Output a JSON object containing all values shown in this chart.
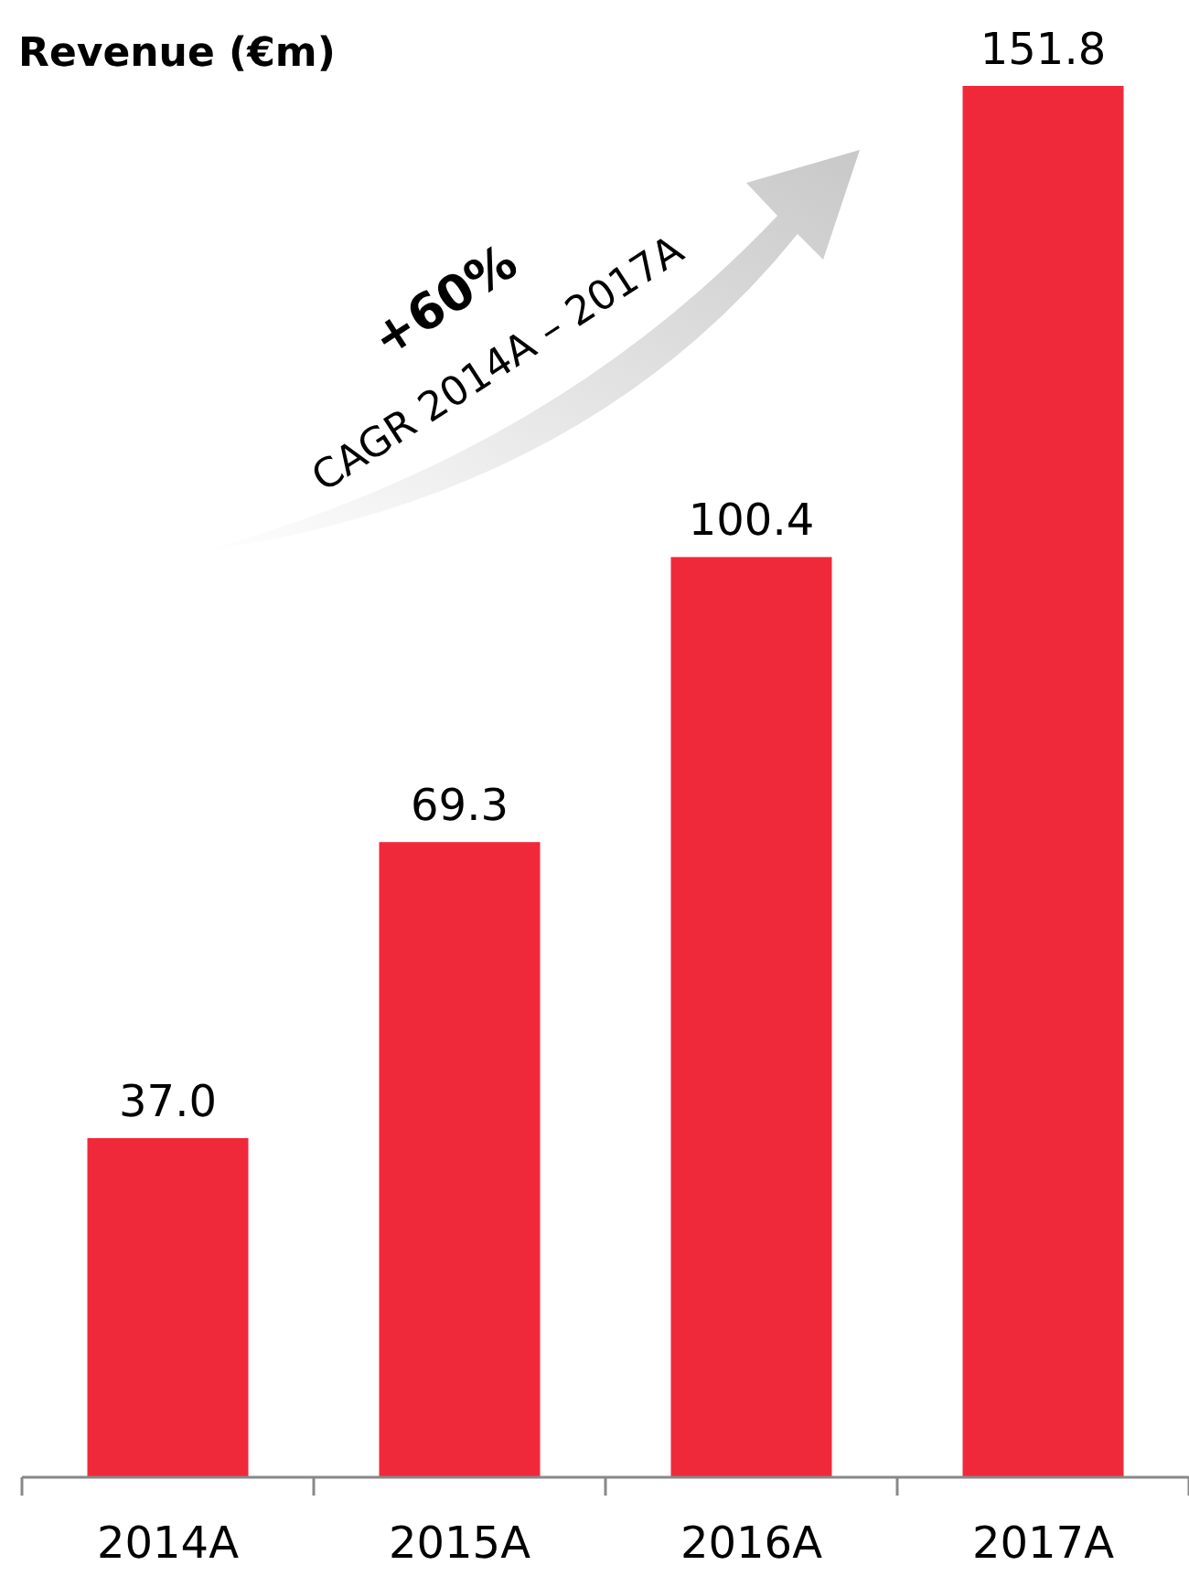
{
  "chart_data": {
    "type": "bar",
    "title": "Revenue (€m)",
    "categories": [
      "2014A",
      "2015A",
      "2016A",
      "2017A"
    ],
    "values": [
      37.0,
      69.3,
      100.4,
      151.8
    ],
    "value_labels": [
      "37.0",
      "69.3",
      "100.4",
      "151.8"
    ],
    "color": "#f0293a",
    "annotations": [
      "+60%",
      "CAGR 2014A – 2017A"
    ]
  }
}
